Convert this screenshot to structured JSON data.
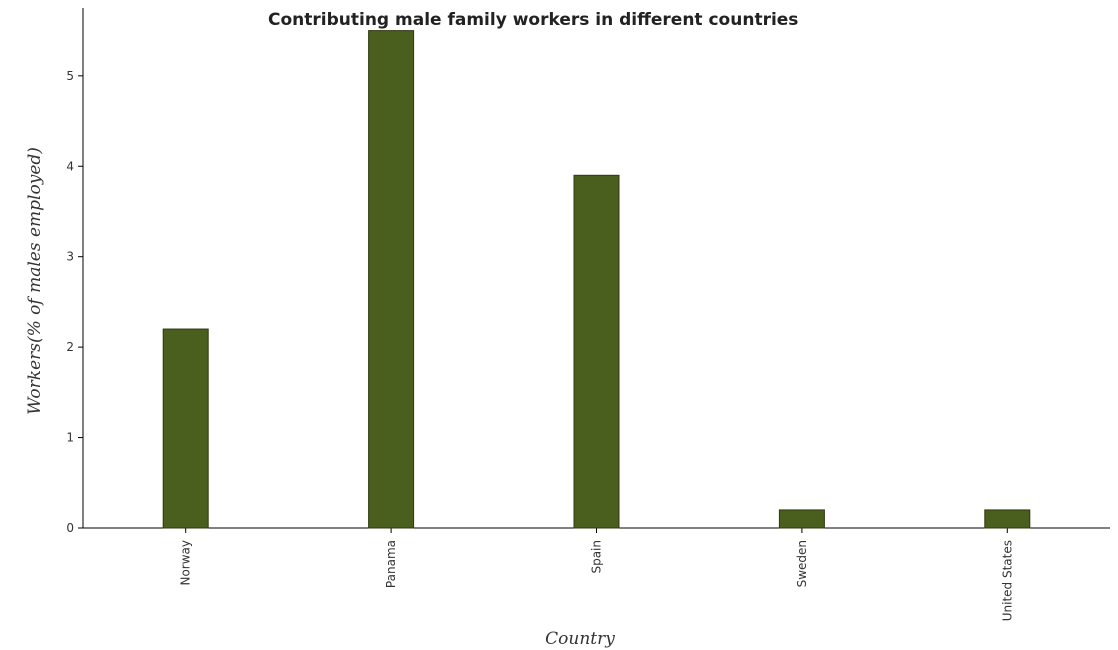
{
  "chart_data": {
    "type": "bar",
    "title": "Contributing male family workers in different countries",
    "xlabel": "Country",
    "ylabel": "Workers(% of males employed)",
    "categories": [
      "Norway",
      "Panama",
      "Spain",
      "Sweden",
      "United States"
    ],
    "values": [
      2.2,
      5.5,
      3.9,
      0.2,
      0.2
    ],
    "ylim": [
      0,
      5.75
    ],
    "yticks": [
      "0",
      "1",
      "2",
      "3",
      "4",
      "5"
    ],
    "grid": false,
    "legend": "none",
    "bar_color": "#4a5e1d",
    "bar_edge_color": "#2e3a12"
  }
}
